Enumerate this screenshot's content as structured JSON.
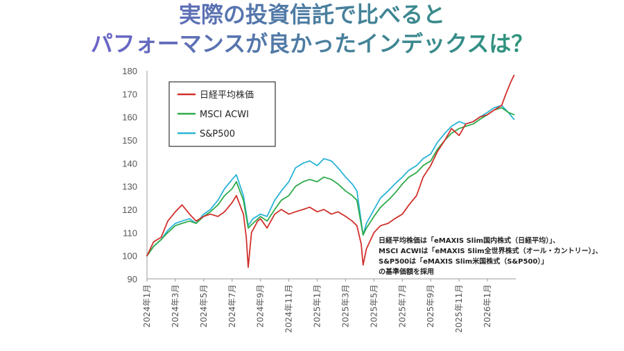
{
  "titles": {
    "line1": "実際の投資信託で比べると",
    "line2": "パフォーマンスが良かったインデックスは？"
  },
  "note": {
    "lines": [
      "日経平均株価は「eMAXIS Slim国内株式（日経平均）」、",
      "MSCI ACWIは「eMAXIS Slim全世界株式（オール・カントリー）」、",
      "S&P500は「eMAXIS Slim米国株式（S&P500）」",
      "の基準価額を採用"
    ]
  },
  "chart_data": {
    "type": "line",
    "title": "実際の投資信託で比べると パフォーマンスが良かったインデックスは？",
    "xlabel": "",
    "ylabel": "",
    "ylim": [
      90,
      180
    ],
    "yticks": [
      90,
      100,
      110,
      120,
      130,
      140,
      150,
      160,
      170,
      180
    ],
    "xlim": [
      "2024-01",
      "2026-03"
    ],
    "xticks": [
      "2024年1月",
      "2024年3月",
      "2024年5月",
      "2024年7月",
      "2024年9月",
      "2024年11月",
      "2025年1月",
      "2025年3月",
      "2025年5月",
      "2025年7月",
      "2025年9月",
      "2025年11月",
      "2026年1月"
    ],
    "grid": false,
    "legend_position": "top-left",
    "series": [
      {
        "name": "日経平均株価",
        "color": "#d0302a",
        "points": [
          [
            "2024-01",
            100
          ],
          [
            "2024-01-15",
            106
          ],
          [
            "2024-02",
            108
          ],
          [
            "2024-02-15",
            115
          ],
          [
            "2024-03",
            119
          ],
          [
            "2024-03-15",
            122
          ],
          [
            "2024-04",
            118
          ],
          [
            "2024-04-15",
            115
          ],
          [
            "2024-05",
            117
          ],
          [
            "2024-05-15",
            118
          ],
          [
            "2024-06",
            117
          ],
          [
            "2024-06-15",
            119
          ],
          [
            "2024-07",
            123
          ],
          [
            "2024-07-10",
            126
          ],
          [
            "2024-07-25",
            118
          ],
          [
            "2024-08-01",
            108
          ],
          [
            "2024-08-05",
            95
          ],
          [
            "2024-08-12",
            110
          ],
          [
            "2024-08-25",
            115
          ],
          [
            "2024-09",
            116
          ],
          [
            "2024-09-15",
            112
          ],
          [
            "2024-10",
            118
          ],
          [
            "2024-10-15",
            120
          ],
          [
            "2024-11",
            118
          ],
          [
            "2024-11-15",
            119
          ],
          [
            "2024-12",
            120
          ],
          [
            "2024-12-15",
            121
          ],
          [
            "2025-01",
            119
          ],
          [
            "2025-01-15",
            120
          ],
          [
            "2025-02",
            118
          ],
          [
            "2025-02-15",
            119
          ],
          [
            "2025-03",
            117
          ],
          [
            "2025-03-15",
            115
          ],
          [
            "2025-03-25",
            113
          ],
          [
            "2025-04-04",
            105
          ],
          [
            "2025-04-08",
            96
          ],
          [
            "2025-04-15",
            103
          ],
          [
            "2025-05",
            110
          ],
          [
            "2025-05-15",
            113
          ],
          [
            "2025-06",
            114
          ],
          [
            "2025-06-15",
            116
          ],
          [
            "2025-07",
            118
          ],
          [
            "2025-07-15",
            122
          ],
          [
            "2025-08",
            126
          ],
          [
            "2025-08-15",
            134
          ],
          [
            "2025-09",
            139
          ],
          [
            "2025-09-15",
            145
          ],
          [
            "2025-10",
            150
          ],
          [
            "2025-10-15",
            155
          ],
          [
            "2025-11",
            152
          ],
          [
            "2025-11-15",
            157
          ],
          [
            "2025-12",
            158
          ],
          [
            "2025-12-15",
            160
          ],
          [
            "2026-01",
            161
          ],
          [
            "2026-01-15",
            163
          ],
          [
            "2026-02",
            165
          ],
          [
            "2026-02-10",
            170
          ],
          [
            "2026-02-20",
            175
          ],
          [
            "2026-02-27",
            178
          ]
        ]
      },
      {
        "name": "MSCI ACWI",
        "color": "#2eaa4a",
        "points": [
          [
            "2024-01",
            100
          ],
          [
            "2024-01-15",
            104
          ],
          [
            "2024-02",
            107
          ],
          [
            "2024-02-15",
            110
          ],
          [
            "2024-03",
            113
          ],
          [
            "2024-03-15",
            114
          ],
          [
            "2024-04",
            115
          ],
          [
            "2024-04-15",
            114
          ],
          [
            "2024-05",
            117
          ],
          [
            "2024-05-15",
            119
          ],
          [
            "2024-06",
            122
          ],
          [
            "2024-06-15",
            126
          ],
          [
            "2024-07",
            129
          ],
          [
            "2024-07-10",
            132
          ],
          [
            "2024-07-25",
            124
          ],
          [
            "2024-08-05",
            112
          ],
          [
            "2024-08-15",
            114
          ],
          [
            "2024-09",
            117
          ],
          [
            "2024-09-15",
            115
          ],
          [
            "2024-10",
            120
          ],
          [
            "2024-10-15",
            124
          ],
          [
            "2024-11",
            126
          ],
          [
            "2024-11-15",
            130
          ],
          [
            "2024-12",
            132
          ],
          [
            "2024-12-15",
            133
          ],
          [
            "2025-01",
            132
          ],
          [
            "2025-01-15",
            134
          ],
          [
            "2025-02",
            133
          ],
          [
            "2025-02-15",
            131
          ],
          [
            "2025-03",
            128
          ],
          [
            "2025-03-15",
            126
          ],
          [
            "2025-03-25",
            124
          ],
          [
            "2025-04-08",
            109
          ],
          [
            "2025-04-15",
            112
          ],
          [
            "2025-05",
            117
          ],
          [
            "2025-05-15",
            121
          ],
          [
            "2025-06",
            124
          ],
          [
            "2025-06-15",
            127
          ],
          [
            "2025-07",
            131
          ],
          [
            "2025-07-15",
            134
          ],
          [
            "2025-08",
            136
          ],
          [
            "2025-08-15",
            139
          ],
          [
            "2025-09",
            141
          ],
          [
            "2025-09-15",
            146
          ],
          [
            "2025-10",
            150
          ],
          [
            "2025-10-15",
            153
          ],
          [
            "2025-11",
            155
          ],
          [
            "2025-11-15",
            156
          ],
          [
            "2025-12",
            157
          ],
          [
            "2025-12-15",
            159
          ],
          [
            "2026-01",
            161
          ],
          [
            "2026-01-15",
            163
          ],
          [
            "2026-02",
            164
          ],
          [
            "2026-02-15",
            162
          ],
          [
            "2026-02-27",
            161
          ]
        ]
      },
      {
        "name": "S&P500",
        "color": "#2ab3d6",
        "points": [
          [
            "2024-01",
            100
          ],
          [
            "2024-01-15",
            104
          ],
          [
            "2024-02",
            107
          ],
          [
            "2024-02-15",
            111
          ],
          [
            "2024-03",
            114
          ],
          [
            "2024-03-15",
            115
          ],
          [
            "2024-04",
            116
          ],
          [
            "2024-04-15",
            114
          ],
          [
            "2024-05",
            118
          ],
          [
            "2024-05-15",
            120
          ],
          [
            "2024-06",
            124
          ],
          [
            "2024-06-15",
            129
          ],
          [
            "2024-07",
            133
          ],
          [
            "2024-07-10",
            135
          ],
          [
            "2024-07-25",
            126
          ],
          [
            "2024-08-05",
            113
          ],
          [
            "2024-08-15",
            116
          ],
          [
            "2024-09",
            118
          ],
          [
            "2024-09-15",
            117
          ],
          [
            "2024-10",
            124
          ],
          [
            "2024-10-15",
            128
          ],
          [
            "2024-11",
            132
          ],
          [
            "2024-11-15",
            138
          ],
          [
            "2024-12",
            140
          ],
          [
            "2024-12-15",
            141
          ],
          [
            "2025-01",
            139
          ],
          [
            "2025-01-15",
            142
          ],
          [
            "2025-02",
            141
          ],
          [
            "2025-02-15",
            138
          ],
          [
            "2025-03",
            134
          ],
          [
            "2025-03-15",
            131
          ],
          [
            "2025-03-25",
            128
          ],
          [
            "2025-04-08",
            109
          ],
          [
            "2025-04-15",
            114
          ],
          [
            "2025-05",
            120
          ],
          [
            "2025-05-15",
            125
          ],
          [
            "2025-06",
            128
          ],
          [
            "2025-06-15",
            131
          ],
          [
            "2025-07",
            134
          ],
          [
            "2025-07-15",
            137
          ],
          [
            "2025-08",
            139
          ],
          [
            "2025-08-15",
            142
          ],
          [
            "2025-09",
            144
          ],
          [
            "2025-09-15",
            149
          ],
          [
            "2025-10",
            153
          ],
          [
            "2025-10-15",
            156
          ],
          [
            "2025-11",
            158
          ],
          [
            "2025-11-15",
            157
          ],
          [
            "2025-12",
            158
          ],
          [
            "2025-12-15",
            160
          ],
          [
            "2026-01",
            162
          ],
          [
            "2026-01-15",
            164
          ],
          [
            "2026-02",
            165
          ],
          [
            "2026-02-15",
            162
          ],
          [
            "2026-02-27",
            159
          ]
        ]
      }
    ],
    "colors": {
      "title_gradient": [
        "#7a5ad8",
        "#1ea06a"
      ],
      "axis": "#999999"
    }
  }
}
